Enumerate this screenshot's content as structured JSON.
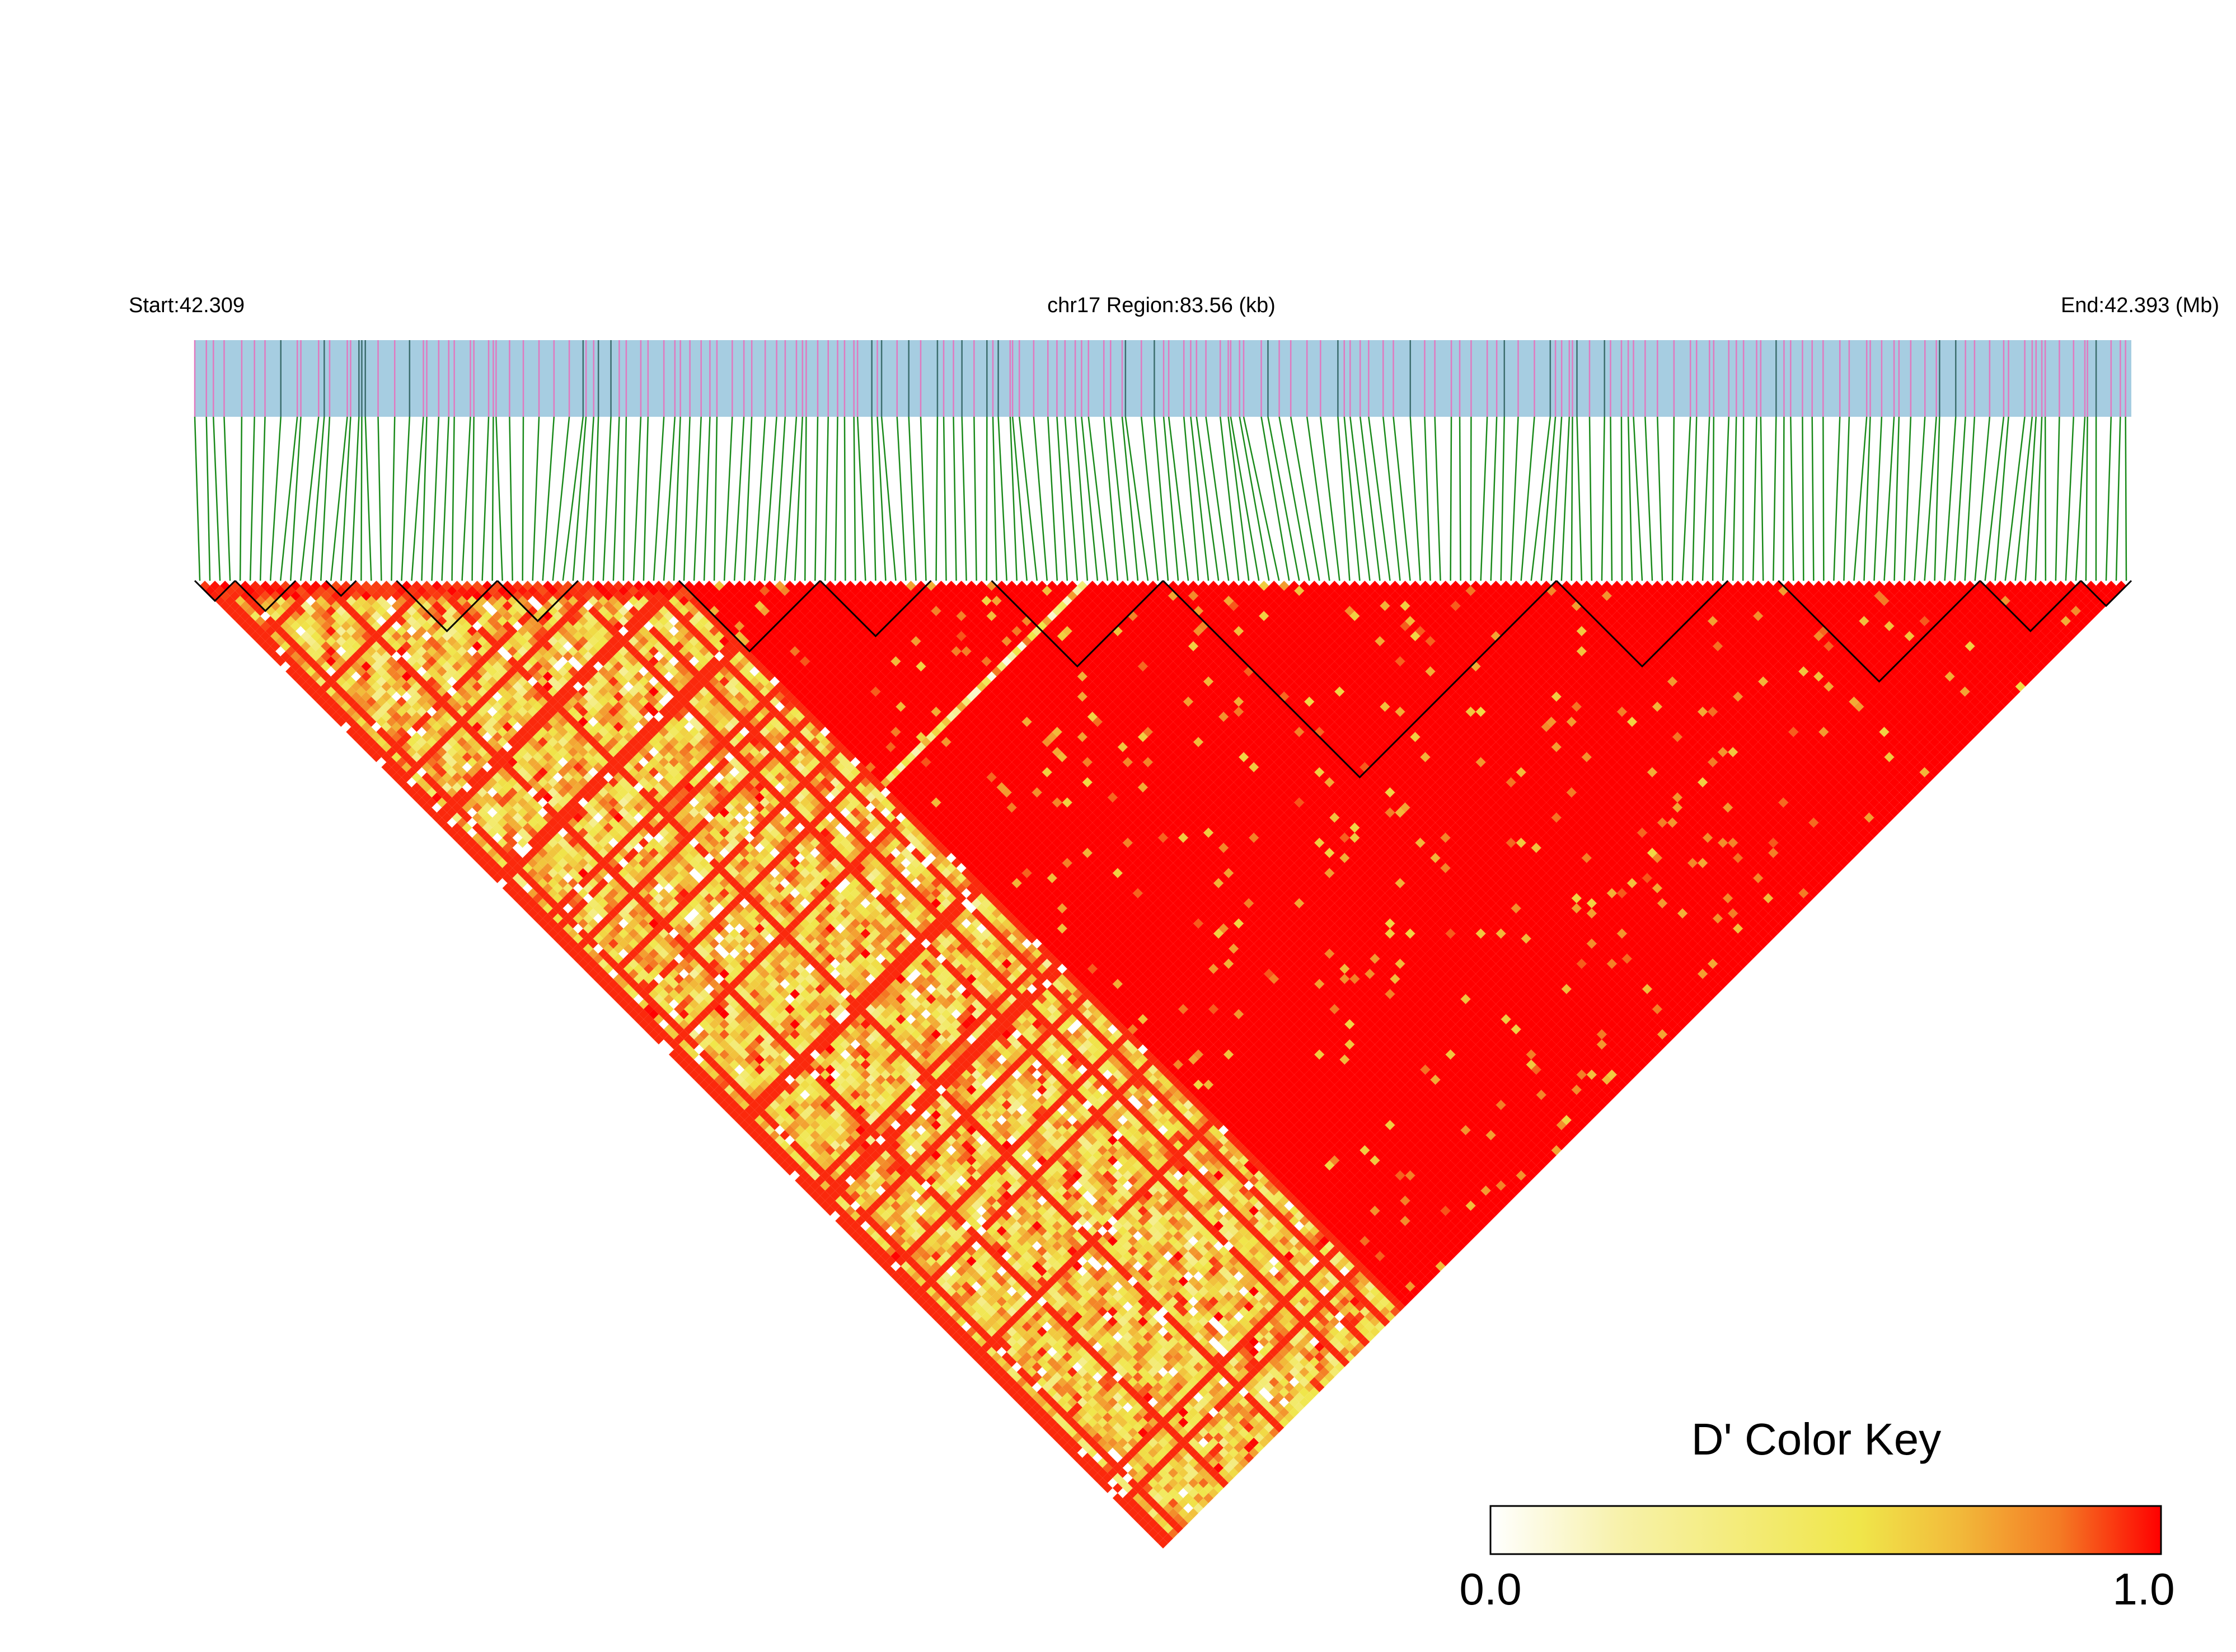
{
  "header": {
    "start_label": "Start:42.309",
    "region_label": "chr17 Region:83.56 (kb)",
    "end_label": "End:42.393 (Mb)"
  },
  "colors": {
    "track_fill": "#a6cde1",
    "snp_mark": "#e07ac0",
    "snp_mark_dark": "#3c6e6e",
    "connector": "#1a8a1a",
    "block_outline": "#000000",
    "ld_high": "#ff0000",
    "ld_mid": "#f0e64a",
    "ld_low": "#ffffff"
  },
  "chart_data": {
    "type": "heatmap",
    "subtype": "LD triangle (pairwise D')",
    "chromosome": "chr17",
    "region_start_mb": 42.309,
    "region_end_mb": 42.393,
    "region_length_kb": 83.56,
    "snp_count": 192,
    "value_range": [
      0.0,
      1.0
    ],
    "haplotype_blocks_snp_index": [
      [
        0,
        4
      ],
      [
        4,
        10
      ],
      [
        13,
        16
      ],
      [
        20,
        30
      ],
      [
        30,
        38
      ],
      [
        48,
        62
      ],
      [
        62,
        73
      ],
      [
        79,
        96
      ],
      [
        96,
        135
      ],
      [
        135,
        152
      ],
      [
        157,
        177
      ],
      [
        177,
        187
      ],
      [
        187,
        192
      ]
    ],
    "description_of_pattern": [
      {
        "snp_range": [
          0,
          48
        ],
        "typical_d_prime": "0.3-0.9 mixed (yellow/orange)"
      },
      {
        "snp_range": [
          48,
          62
        ],
        "typical_d_prime": "~1.0"
      },
      {
        "snp_range": [
          62,
          88
        ],
        "typical_d_prime": "~1.0 with scattered low rows"
      },
      {
        "snp_range": [
          88,
          192
        ],
        "typical_d_prime": "~1.0"
      }
    ],
    "legend": {
      "title": "D' Color Key",
      "min_label": "0.0",
      "max_label": "1.0",
      "stops": [
        "#ffffff",
        "#f7f1a8",
        "#f0e64a",
        "#f2b93a",
        "#f47a24",
        "#ff0000"
      ]
    }
  }
}
